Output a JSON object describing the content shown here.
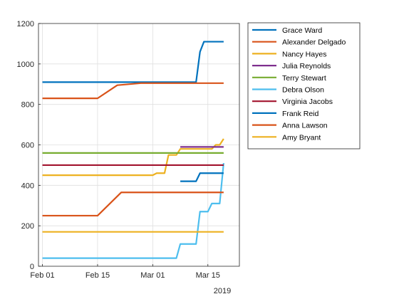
{
  "chart_data": {
    "type": "line",
    "title": "",
    "xlabel": "",
    "ylabel": "",
    "x_year_label": "2019",
    "xlim": [
      "2019-01-31",
      "2019-03-23"
    ],
    "ylim": [
      0,
      1200
    ],
    "x_ticks": [
      {
        "date": "2019-02-01",
        "label": "Feb 01"
      },
      {
        "date": "2019-02-15",
        "label": "Feb 15"
      },
      {
        "date": "2019-03-01",
        "label": "Mar 01"
      },
      {
        "date": "2019-03-15",
        "label": "Mar 15"
      }
    ],
    "y_ticks": [
      0,
      200,
      400,
      600,
      800,
      1000,
      1200
    ],
    "grid": true,
    "legend_position": "outside-right",
    "series": [
      {
        "name": "Grace Ward",
        "color": "#0072bd",
        "points": [
          [
            "2019-02-01",
            910
          ],
          [
            "2019-03-12",
            910
          ],
          [
            "2019-03-13",
            1060
          ],
          [
            "2019-03-14",
            1110
          ],
          [
            "2019-03-19",
            1110
          ]
        ]
      },
      {
        "name": "Alexander Delgado",
        "color": "#d95319",
        "points": [
          [
            "2019-02-01",
            830
          ],
          [
            "2019-02-15",
            830
          ],
          [
            "2019-02-20",
            895
          ],
          [
            "2019-02-26",
            905
          ],
          [
            "2019-03-19",
            905
          ]
        ]
      },
      {
        "name": "Nancy Hayes",
        "color": "#edb120",
        "points": [
          [
            "2019-02-01",
            450
          ],
          [
            "2019-03-01",
            450
          ],
          [
            "2019-03-02",
            460
          ],
          [
            "2019-03-04",
            460
          ],
          [
            "2019-03-05",
            550
          ],
          [
            "2019-03-07",
            550
          ],
          [
            "2019-03-08",
            580
          ],
          [
            "2019-03-16",
            580
          ],
          [
            "2019-03-17",
            600
          ],
          [
            "2019-03-18",
            600
          ],
          [
            "2019-03-19",
            630
          ]
        ]
      },
      {
        "name": "Julia Reynolds",
        "color": "#7e2f8e",
        "points": [
          [
            "2019-03-08",
            590
          ],
          [
            "2019-03-19",
            590
          ]
        ]
      },
      {
        "name": "Terry Stewart",
        "color": "#77ac30",
        "points": [
          [
            "2019-02-01",
            560
          ],
          [
            "2019-03-19",
            560
          ]
        ]
      },
      {
        "name": "Debra Olson",
        "color": "#4dbeee",
        "points": [
          [
            "2019-02-01",
            40
          ],
          [
            "2019-03-07",
            40
          ],
          [
            "2019-03-08",
            110
          ],
          [
            "2019-03-12",
            110
          ],
          [
            "2019-03-13",
            270
          ],
          [
            "2019-03-15",
            270
          ],
          [
            "2019-03-16",
            310
          ],
          [
            "2019-03-18",
            310
          ],
          [
            "2019-03-19",
            510
          ]
        ]
      },
      {
        "name": "Virginia Jacobs",
        "color": "#a2142f",
        "points": [
          [
            "2019-02-01",
            500
          ],
          [
            "2019-03-19",
            500
          ]
        ]
      },
      {
        "name": "Frank Reid",
        "color": "#0072bd",
        "points": [
          [
            "2019-03-08",
            420
          ],
          [
            "2019-03-12",
            420
          ],
          [
            "2019-03-13",
            460
          ],
          [
            "2019-03-19",
            460
          ]
        ]
      },
      {
        "name": "Anna Lawson",
        "color": "#d95319",
        "points": [
          [
            "2019-02-01",
            250
          ],
          [
            "2019-02-15",
            250
          ],
          [
            "2019-02-21",
            365
          ],
          [
            "2019-03-19",
            365
          ]
        ]
      },
      {
        "name": "Amy Bryant",
        "color": "#edb120",
        "points": [
          [
            "2019-02-01",
            170
          ],
          [
            "2019-03-19",
            170
          ]
        ]
      }
    ]
  }
}
